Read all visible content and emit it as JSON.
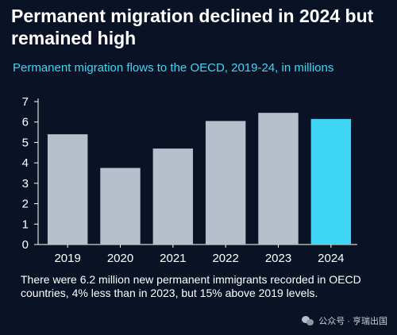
{
  "title": "Permanent migration declined in 2024 but remained high",
  "subtitle": "Permanent migration flows to the OECD, 2019-24, in millions",
  "caption": "There were 6.2 million new permanent immigrants recorded in OECD countries, 4% less than in 2023, but 15% above 2019 levels.",
  "watermark": "公众号 · 亨瑞出国",
  "colors": {
    "background": "#0a1326",
    "bar": "#b8bfcc",
    "highlight": "#3fd6f5",
    "axis": "#ffffff"
  },
  "chart_data": {
    "type": "bar",
    "categories": [
      "2019",
      "2020",
      "2021",
      "2022",
      "2023",
      "2024"
    ],
    "values": [
      5.4,
      3.75,
      4.7,
      6.05,
      6.45,
      6.15
    ],
    "highlight_index": 5,
    "ylim": [
      0,
      7
    ],
    "yticks": [
      0,
      1,
      2,
      3,
      4,
      5,
      6,
      7
    ],
    "grid": false,
    "legend": "none",
    "xlabel": "",
    "ylabel": ""
  }
}
